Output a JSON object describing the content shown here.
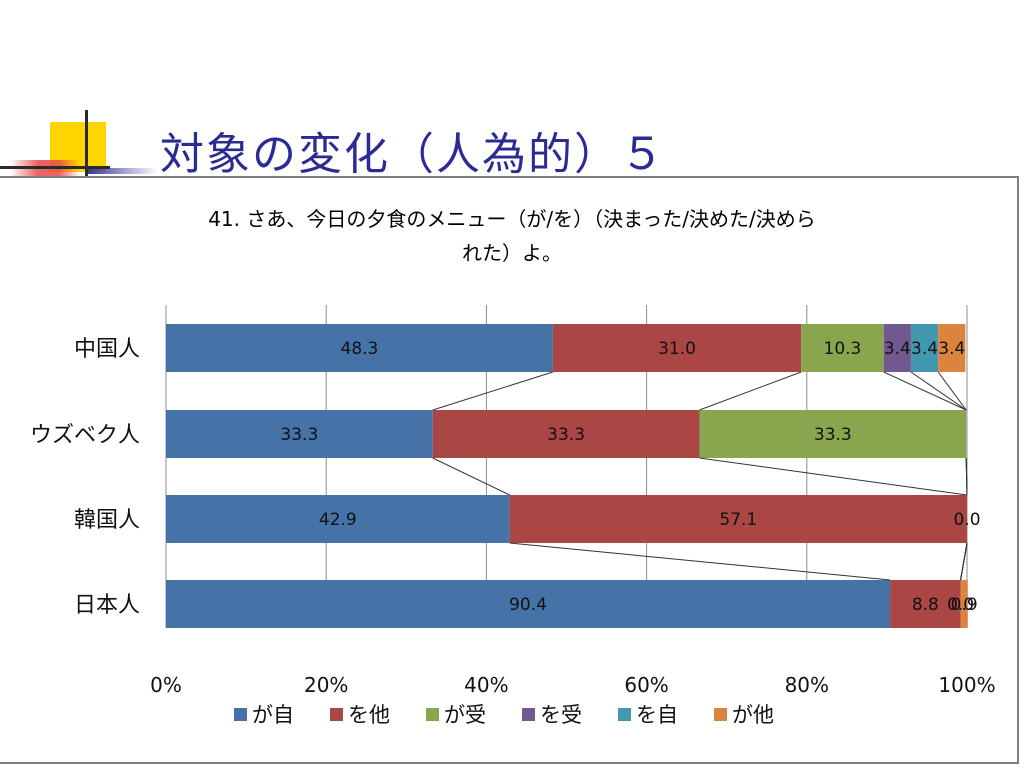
{
  "slide_title": "対象の変化（人為的）５",
  "chart_data": {
    "type": "bar",
    "orientation": "horizontal",
    "stacked": "percent",
    "title_line1": "41. さあ、今日の夕食のメニュー（が/を）（決まった/決めた/決めら",
    "title_line2": "れた）よ。",
    "categories": [
      "中国人",
      "ウズベク人",
      "韓国人",
      "日本人"
    ],
    "series": [
      {
        "name": "が自",
        "color": "#4572a7",
        "values": [
          48.3,
          33.3,
          42.9,
          90.4
        ],
        "labels": [
          "48.3",
          "33.3",
          "42.9",
          "90.4"
        ]
      },
      {
        "name": "を他",
        "color": "#aa4643",
        "values": [
          31.0,
          33.3,
          57.1,
          8.8
        ],
        "labels": [
          "31.0",
          "33.3",
          "57.1",
          "8.8"
        ]
      },
      {
        "name": "が受",
        "color": "#89a54e",
        "values": [
          10.3,
          33.3,
          0.0,
          0.0
        ],
        "labels": [
          "10.3",
          "33.3",
          "0.0",
          "0.0"
        ]
      },
      {
        "name": "を受",
        "color": "#71588f",
        "values": [
          3.4,
          0.0,
          0.0,
          0.0
        ],
        "labels": [
          "3.4",
          "",
          "",
          ""
        ]
      },
      {
        "name": "を自",
        "color": "#4198af",
        "values": [
          3.4,
          0.0,
          0.0,
          0.0
        ],
        "labels": [
          "3.4",
          "",
          "",
          ""
        ]
      },
      {
        "name": "が他",
        "color": "#db843d",
        "values": [
          3.4,
          0.0,
          0.0,
          0.9
        ],
        "labels": [
          "3.4",
          "",
          "",
          "0.9"
        ]
      }
    ],
    "x_ticks": [
      "0%",
      "20%",
      "40%",
      "60%",
      "80%",
      "100%"
    ],
    "xlim": [
      0,
      100
    ],
    "grid": true,
    "series_lines": true,
    "legend_position": "bottom"
  }
}
